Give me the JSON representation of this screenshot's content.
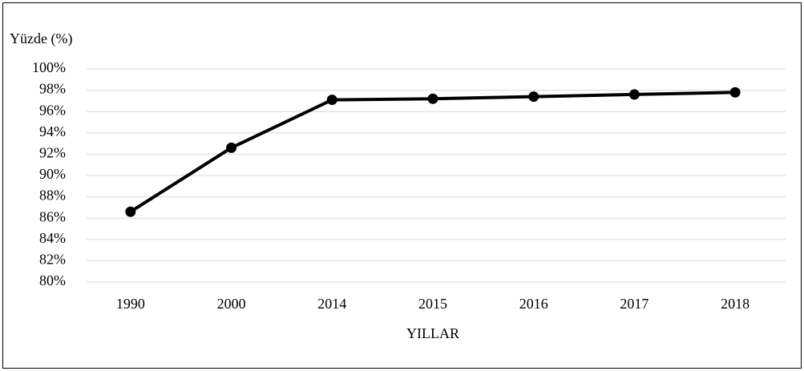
{
  "chart_data": {
    "type": "line",
    "y_axis_label": "Yüzde (%)",
    "x_axis_label": "YILLAR",
    "categories": [
      "1990",
      "2000",
      "2014",
      "2015",
      "2016",
      "2017",
      "2018"
    ],
    "values": [
      86.6,
      92.6,
      97.1,
      97.2,
      97.4,
      97.6,
      97.8
    ],
    "color": "#000000",
    "ylim": [
      80,
      100
    ],
    "yticks": [
      {
        "value": 80,
        "label": "80%"
      },
      {
        "value": 82,
        "label": "82%"
      },
      {
        "value": 84,
        "label": "84%"
      },
      {
        "value": 86,
        "label": "86%"
      },
      {
        "value": 88,
        "label": "88%"
      },
      {
        "value": 90,
        "label": "90%"
      },
      {
        "value": 92,
        "label": "92%"
      },
      {
        "value": 94,
        "label": "94%"
      },
      {
        "value": 96,
        "label": "96%"
      },
      {
        "value": 98,
        "label": "98%"
      },
      {
        "value": 100,
        "label": "100%"
      }
    ],
    "grid": true
  }
}
